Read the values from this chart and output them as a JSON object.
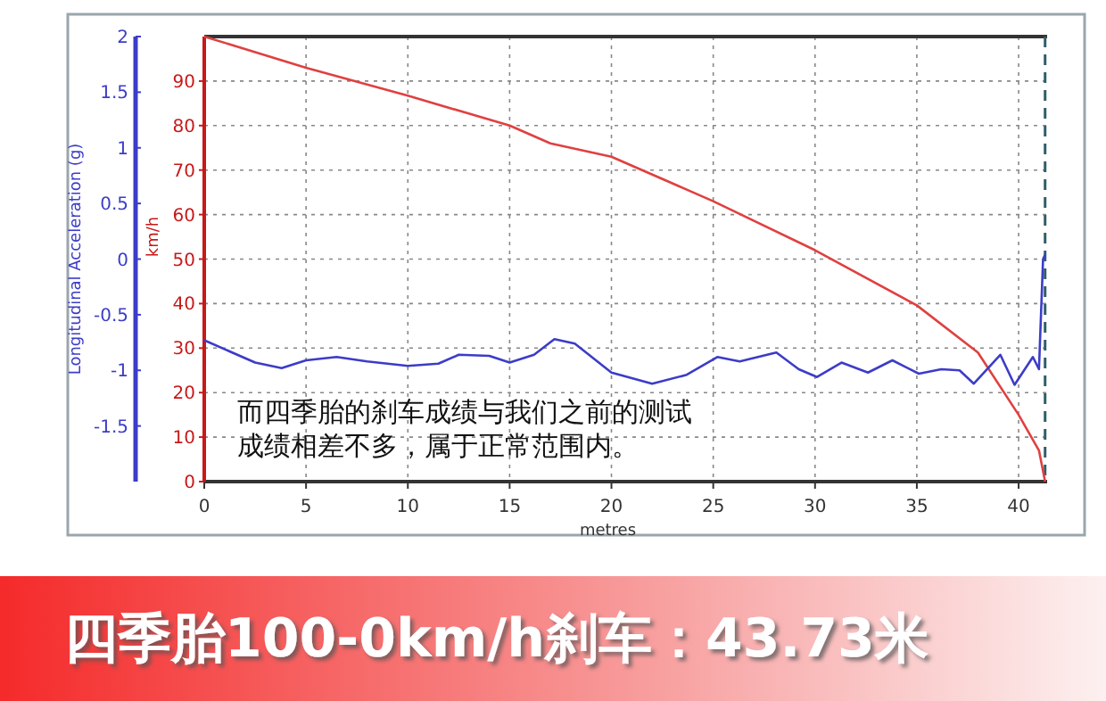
{
  "chart_data": {
    "type": "line",
    "title": "四季胎100-0km/h刹车：43.73米",
    "xlabel": "metres",
    "ylabel": "km/h",
    "y2label": "Longitudinal Acceleration (g)",
    "xlim": [
      0,
      41.4
    ],
    "xticks": [
      0,
      5,
      10,
      15,
      20,
      25,
      30,
      35,
      40
    ],
    "ylim": [
      0,
      100
    ],
    "yticks": [
      0,
      10,
      20,
      30,
      40,
      50,
      60,
      70,
      80,
      90
    ],
    "y2lim": [
      -2,
      2
    ],
    "y2ticks": [
      -1.5,
      -1,
      -0.5,
      0,
      0.5,
      1,
      1.5,
      2
    ],
    "grid": true,
    "line_style": "solid",
    "series": [
      {
        "color": "#e04040",
        "axis": "y",
        "x": [
          0,
          5,
          10,
          15,
          17,
          20,
          25,
          30,
          35,
          38,
          40,
          41,
          41.3
        ],
        "values": [
          100,
          93,
          86.7,
          80,
          76,
          73,
          63,
          52,
          39.6,
          29,
          15,
          7,
          0
        ]
      },
      {
        "color": "#3c3cc8",
        "axis": "y2",
        "x": [
          0,
          2.5,
          3.8,
          5,
          6.5,
          8,
          10,
          11.5,
          12.5,
          14,
          15,
          16.2,
          17.2,
          18.2,
          20,
          22,
          23.7,
          25.2,
          26.3,
          28.1,
          29.2,
          30.1,
          31.3,
          32.6,
          33.8,
          35.1,
          36.2,
          37.1,
          37.8,
          39.1,
          39.8,
          40.7,
          41,
          41.2,
          41.3
        ],
        "values": [
          -0.73,
          -0.93,
          -0.98,
          -0.91,
          -0.88,
          -0.92,
          -0.96,
          -0.94,
          -0.86,
          -0.87,
          -0.93,
          -0.86,
          -0.72,
          -0.76,
          -1.02,
          -1.12,
          -1.04,
          -0.88,
          -0.92,
          -0.84,
          -0.99,
          -1.06,
          -0.93,
          -1.02,
          -0.91,
          -1.03,
          -0.99,
          -1.0,
          -1.12,
          -0.86,
          -1.13,
          -0.88,
          -0.99,
          0,
          0.04
        ]
      }
    ],
    "ref_lines": [
      {
        "axis": "x",
        "value": 41.3,
        "color": "#2f5f6a",
        "line_style": "dashed"
      }
    ],
    "annotations": [
      "而四季胎的刹车成绩与我们之前的测试",
      "成绩相差不多，属于正常范围内。"
    ]
  }
}
